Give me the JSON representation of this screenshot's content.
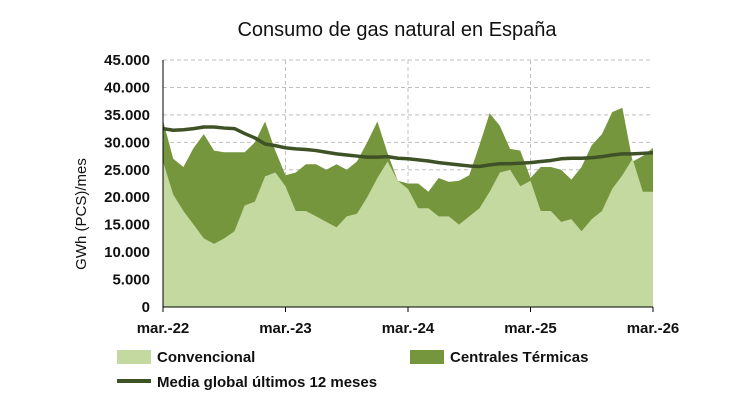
{
  "chart_data": {
    "type": "area",
    "title": "Consumo de gas natural en España",
    "ylabel": "GWh (PCS)/mes",
    "xlabel": "",
    "ylim": [
      0,
      45000
    ],
    "yticks": [
      0,
      5000,
      10000,
      15000,
      20000,
      25000,
      30000,
      35000,
      40000,
      45000
    ],
    "ytick_labels": [
      "0",
      "5.000",
      "10.000",
      "15.000",
      "20.000",
      "25.000",
      "30.000",
      "35.000",
      "40.000",
      "45.000"
    ],
    "xtick_labels": [
      "mar.-22",
      "mar.-23",
      "mar.-24",
      "mar.-25",
      "mar.-26"
    ],
    "grid": true,
    "legend_position": "bottom",
    "colors": {
      "convencional": "#c4d9a0",
      "centrales": "#76963e",
      "media": "#3e5226"
    },
    "series": [
      {
        "name": "Convencional",
        "stack": "total",
        "values": [
          26500,
          20500,
          17500,
          15000,
          12500,
          11500,
          12500,
          13800,
          18500,
          19200,
          23800,
          24500,
          22000,
          17500,
          17500,
          16500,
          15500,
          14500,
          16500,
          17000,
          20000,
          23500,
          26500,
          23000,
          21500,
          18000,
          18000,
          16500,
          16500,
          15000,
          16500,
          18000,
          21000,
          24500,
          25000,
          22000,
          23000,
          17500,
          17500,
          15500,
          16000,
          13800,
          16000,
          17500,
          21500,
          24000,
          27000,
          21000,
          21000
        ]
      },
      {
        "name": "Centrales Térmicas",
        "stack": "total",
        "values": [
          34000,
          27000,
          25500,
          29000,
          31500,
          28500,
          28200,
          28200,
          28200,
          30000,
          33800,
          28500,
          24000,
          24500,
          26000,
          26000,
          25000,
          26000,
          25000,
          26500,
          30000,
          33800,
          28000,
          23000,
          22500,
          22500,
          21000,
          23500,
          22800,
          23000,
          24000,
          29500,
          35300,
          33000,
          28800,
          28500,
          23500,
          25500,
          25500,
          25000,
          23200,
          25500,
          29500,
          31500,
          35500,
          36300,
          26500,
          27500,
          29000
        ]
      },
      {
        "name": "Media global últimos 12 meses",
        "values": [
          32500,
          32200,
          32300,
          32500,
          32800,
          32800,
          32600,
          32500,
          31600,
          30800,
          29700,
          29400,
          29000,
          28800,
          28700,
          28500,
          28200,
          27900,
          27700,
          27500,
          27300,
          27300,
          27400,
          27100,
          27000,
          26800,
          26600,
          26300,
          26100,
          25900,
          25700,
          25600,
          25900,
          26100,
          26100,
          26200,
          26300,
          26500,
          26700,
          27000,
          27100,
          27100,
          27200,
          27400,
          27700,
          27900,
          27900,
          28000,
          28100
        ]
      }
    ]
  }
}
